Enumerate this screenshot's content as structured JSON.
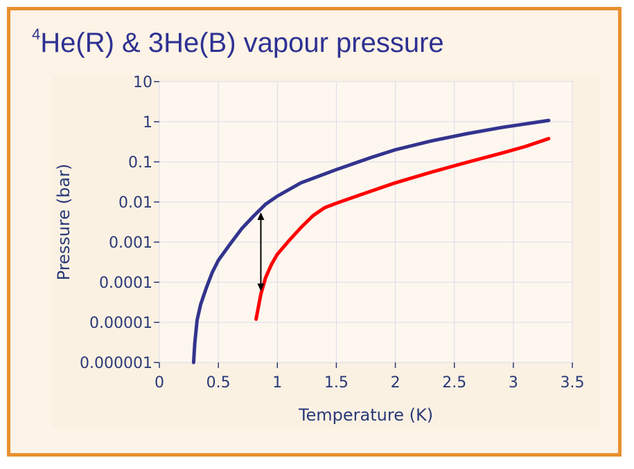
{
  "slide": {
    "title_sup": "4",
    "title_text": "He(R) & 3He(B) vapour pressure"
  },
  "chart_data": {
    "type": "line",
    "xlabel": "Temperature (K)",
    "ylabel": "Pressure (bar)",
    "xlim": [
      0,
      3.5
    ],
    "ylim": [
      1e-06,
      10
    ],
    "yscale": "log",
    "grid": true,
    "x_ticks": [
      {
        "value": 0,
        "label": "0"
      },
      {
        "value": 0.5,
        "label": "0.5"
      },
      {
        "value": 1,
        "label": "1"
      },
      {
        "value": 1.5,
        "label": "1.5"
      },
      {
        "value": 2,
        "label": "2"
      },
      {
        "value": 2.5,
        "label": "2.5"
      },
      {
        "value": 3,
        "label": "3"
      },
      {
        "value": 3.5,
        "label": "3.5"
      }
    ],
    "y_ticks": [
      {
        "value": 10,
        "label": "10"
      },
      {
        "value": 1,
        "label": "1"
      },
      {
        "value": 0.1,
        "label": "0.1"
      },
      {
        "value": 0.01,
        "label": "0.01"
      },
      {
        "value": 0.001,
        "label": "0.001"
      },
      {
        "value": 0.0001,
        "label": "0.0001"
      },
      {
        "value": 1e-05,
        "label": "0.00001"
      },
      {
        "value": 1e-06,
        "label": "0.000001"
      }
    ],
    "series": [
      {
        "color": "#33348e",
        "points": [
          [
            0.29,
            1e-06
          ],
          [
            0.3,
            3e-06
          ],
          [
            0.32,
            1.15e-05
          ],
          [
            0.35,
            2.8e-05
          ],
          [
            0.4,
            7.5e-05
          ],
          [
            0.45,
            0.00018
          ],
          [
            0.5,
            0.00035
          ],
          [
            0.6,
            0.0009
          ],
          [
            0.7,
            0.0022
          ],
          [
            0.8,
            0.0045
          ],
          [
            0.9,
            0.0088
          ],
          [
            1.0,
            0.014
          ],
          [
            1.2,
            0.03
          ],
          [
            1.5,
            0.064
          ],
          [
            1.8,
            0.13
          ],
          [
            2.0,
            0.2
          ],
          [
            2.3,
            0.33
          ],
          [
            2.6,
            0.5
          ],
          [
            2.9,
            0.72
          ],
          [
            3.1,
            0.88
          ],
          [
            3.3,
            1.08
          ]
        ]
      },
      {
        "color": "#ff0000",
        "points": [
          [
            0.82,
            1.2e-05
          ],
          [
            0.86,
            5e-05
          ],
          [
            0.9,
            0.00013
          ],
          [
            0.95,
            0.00028
          ],
          [
            1.0,
            0.0005
          ],
          [
            1.1,
            0.0011
          ],
          [
            1.2,
            0.0023
          ],
          [
            1.3,
            0.0045
          ],
          [
            1.4,
            0.0072
          ],
          [
            1.5,
            0.0093
          ],
          [
            1.7,
            0.015
          ],
          [
            2.0,
            0.03
          ],
          [
            2.3,
            0.055
          ],
          [
            2.6,
            0.096
          ],
          [
            2.9,
            0.165
          ],
          [
            3.1,
            0.24
          ],
          [
            3.3,
            0.38
          ]
        ]
      }
    ],
    "annotations": [
      {
        "type": "double-arrow",
        "x": 0.86,
        "y_from": 0.0055,
        "y_to": 6e-05,
        "color": "#000000"
      }
    ]
  }
}
